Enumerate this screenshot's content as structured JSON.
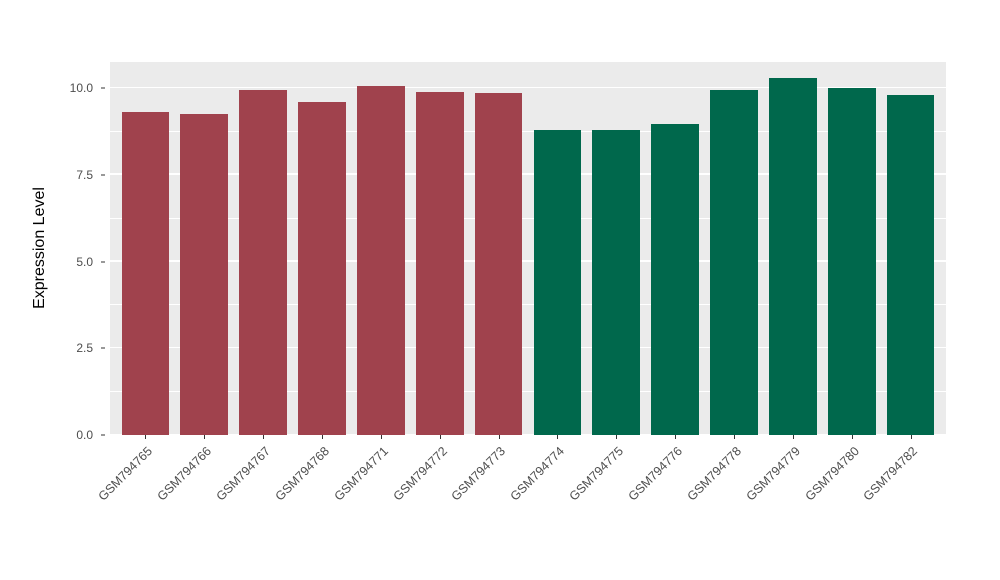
{
  "chart_data": {
    "type": "bar",
    "title": "",
    "xlabel": "",
    "ylabel": "Expression Level",
    "ylim": [
      0,
      10.75
    ],
    "grid": "on",
    "legend_position": "none",
    "panel_background": "#EBEBEB",
    "grid_color": "#FFFFFF",
    "yticks": [
      {
        "value": 0,
        "label": "0.0"
      },
      {
        "value": 2.5,
        "label": "2.5"
      },
      {
        "value": 5,
        "label": "5.0"
      },
      {
        "value": 7.5,
        "label": "7.5"
      },
      {
        "value": 10,
        "label": "10.0"
      }
    ],
    "minor_ticks": [
      1.25,
      3.75,
      6.25,
      8.75
    ],
    "categories": [
      "GSM794765",
      "GSM794766",
      "GSM794767",
      "GSM794768",
      "GSM794771",
      "GSM794772",
      "GSM794773",
      "GSM794774",
      "GSM794775",
      "GSM794776",
      "GSM794778",
      "GSM794779",
      "GSM794780",
      "GSM794782"
    ],
    "values": [
      9.3,
      9.25,
      9.95,
      9.6,
      10.05,
      9.9,
      9.85,
      8.8,
      8.8,
      8.95,
      9.95,
      10.3,
      10.0,
      9.8
    ],
    "colors": [
      "#A0424D",
      "#A0424D",
      "#A0424D",
      "#A0424D",
      "#A0424D",
      "#A0424D",
      "#A0424D",
      "#00684C",
      "#00684C",
      "#00684C",
      "#00684C",
      "#00684C",
      "#00684C",
      "#00684C"
    ],
    "group_colors": {
      "group1": "#A0424D",
      "group2": "#00684C"
    }
  }
}
